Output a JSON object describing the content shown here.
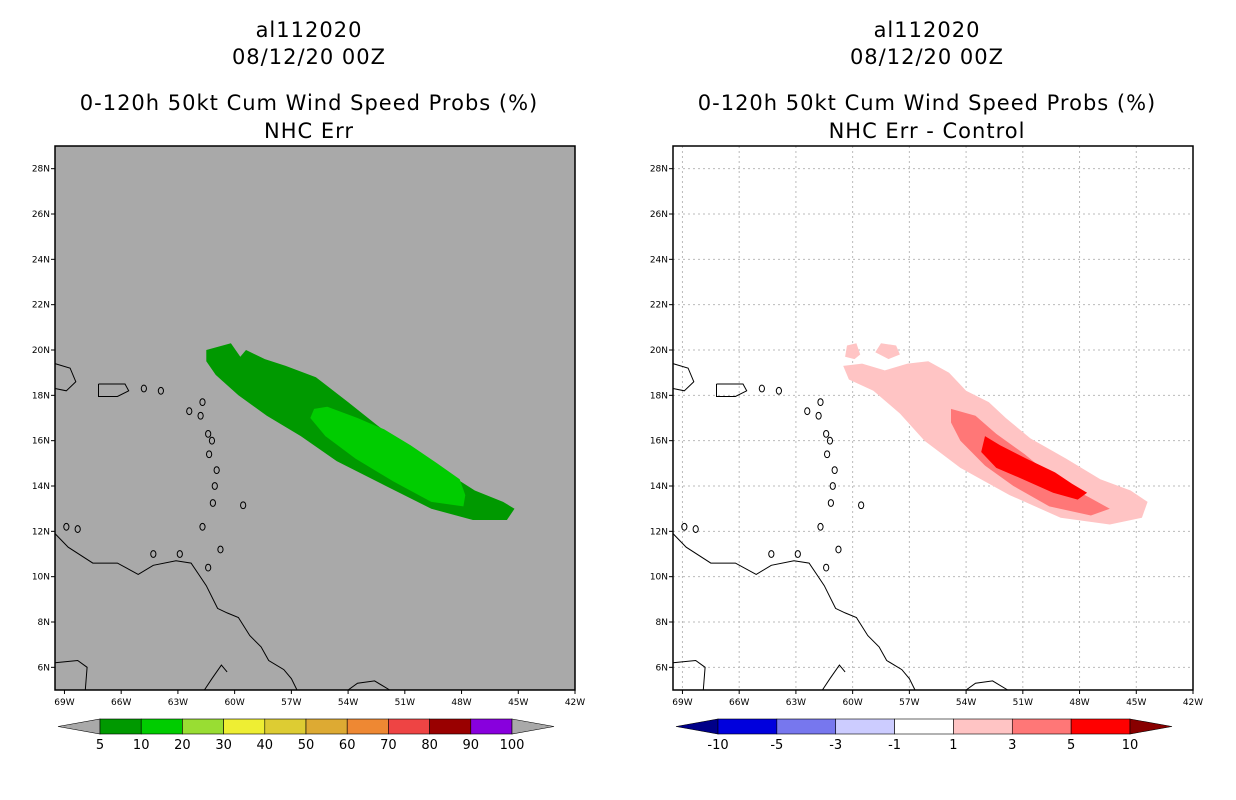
{
  "chart_data": [
    {
      "type": "heatmap",
      "title_lines": [
        "al112020",
        "08/12/20 00Z",
        "0-120h 50kt Cum Wind Speed Probs (%)",
        "NHC Err"
      ],
      "x_ticks": [
        "69W",
        "66W",
        "63W",
        "60W",
        "57W",
        "54W",
        "51W",
        "48W",
        "45W",
        "42W"
      ],
      "y_ticks": [
        "6N",
        "8N",
        "10N",
        "12N",
        "14N",
        "16N",
        "18N",
        "20N",
        "22N",
        "24N",
        "26N",
        "28N"
      ],
      "xlim_deg_w": [
        69.5,
        42
      ],
      "ylim_deg_n": [
        5,
        29
      ],
      "grid": false,
      "background_color": "#a9a9a9",
      "colorbar": {
        "labels": [
          "5",
          "10",
          "20",
          "30",
          "40",
          "50",
          "60",
          "70",
          "80",
          "90",
          "100"
        ],
        "colors": [
          "#009900",
          "#00cc00",
          "#99dd33",
          "#eeee33",
          "#ddcc33",
          "#ddaa33",
          "#ee8833",
          "#ee4444",
          "#990000",
          "#8800dd"
        ],
        "under_color": "#a9a9a9",
        "over_color": "#a9a9a9"
      },
      "contours": [
        {
          "level": 5,
          "color": "#009900",
          "polygon": [
            [
              61.5,
              20
            ],
            [
              60.2,
              20.3
            ],
            [
              59.7,
              19.7
            ],
            [
              59.4,
              20
            ],
            [
              58.4,
              19.6
            ],
            [
              57.3,
              19.3
            ],
            [
              55.7,
              18.8
            ],
            [
              54,
              17.7
            ],
            [
              52.5,
              16.7
            ],
            [
              50.9,
              15.7
            ],
            [
              48.8,
              14.6
            ],
            [
              47.3,
              13.8
            ],
            [
              45.8,
              13.3
            ],
            [
              45.2,
              13
            ],
            [
              45.6,
              12.5
            ],
            [
              47.4,
              12.5
            ],
            [
              49.6,
              13
            ],
            [
              52,
              14
            ],
            [
              54.6,
              15.1
            ],
            [
              56.5,
              16.2
            ],
            [
              58.3,
              17.1
            ],
            [
              59.8,
              18
            ],
            [
              61,
              18.9
            ],
            [
              61.5,
              19.5
            ]
          ]
        },
        {
          "level": 10,
          "color": "#00cc00",
          "polygon": [
            [
              55.1,
              17.5
            ],
            [
              53.5,
              17
            ],
            [
              52.1,
              16.5
            ],
            [
              50.7,
              15.8
            ],
            [
              49.3,
              15
            ],
            [
              48.1,
              14.3
            ],
            [
              47.8,
              13.6
            ],
            [
              47.9,
              13.1
            ],
            [
              49.6,
              13.3
            ],
            [
              51.6,
              14.2
            ],
            [
              53.6,
              15.2
            ],
            [
              55.2,
              16.2
            ],
            [
              56,
              17
            ],
            [
              55.8,
              17.4
            ]
          ]
        }
      ]
    },
    {
      "type": "heatmap",
      "title_lines": [
        "al112020",
        "08/12/20 00Z",
        "0-120h 50kt Cum Wind Speed Probs (%)",
        "NHC Err - Control"
      ],
      "x_ticks": [
        "69W",
        "66W",
        "63W",
        "60W",
        "57W",
        "54W",
        "51W",
        "48W",
        "45W",
        "42W"
      ],
      "y_ticks": [
        "6N",
        "8N",
        "10N",
        "12N",
        "14N",
        "16N",
        "18N",
        "20N",
        "22N",
        "24N",
        "26N",
        "28N"
      ],
      "xlim_deg_w": [
        69.5,
        42
      ],
      "ylim_deg_n": [
        5,
        29
      ],
      "grid": true,
      "background_color": "#ffffff",
      "colorbar": {
        "labels": [
          "-10",
          "-5",
          "-3",
          "-1",
          "1",
          "3",
          "5",
          "10"
        ],
        "colors": [
          "#0000dd",
          "#7777ee",
          "#ccccff",
          "#ffffff",
          "#ffc4c4",
          "#ff7777",
          "#ff0000"
        ],
        "under_color": "#000088",
        "over_color": "#880000"
      },
      "contours": [
        {
          "level": 1,
          "color": "#ffc4c4",
          "polygon": [
            [
              60.5,
              19.3
            ],
            [
              59.5,
              19.4
            ],
            [
              58.3,
              19.1
            ],
            [
              57.1,
              19.4
            ],
            [
              56,
              19.5
            ],
            [
              54.9,
              19
            ],
            [
              54,
              18.2
            ],
            [
              52.8,
              17.7
            ],
            [
              51.9,
              17
            ],
            [
              50.6,
              16.1
            ],
            [
              48.7,
              15.2
            ],
            [
              46.9,
              14.3
            ],
            [
              45.3,
              13.8
            ],
            [
              44.4,
              13.3
            ],
            [
              44.7,
              12.6
            ],
            [
              46.4,
              12.3
            ],
            [
              49,
              12.6
            ],
            [
              51.7,
              13.6
            ],
            [
              54.3,
              14.8
            ],
            [
              56.2,
              16
            ],
            [
              57.5,
              17.2
            ],
            [
              58.9,
              18.2
            ],
            [
              60.2,
              18.7
            ]
          ]
        },
        {
          "level": 1,
          "color": "#ffc4c4",
          "polygon": [
            [
              60.3,
              20.2
            ],
            [
              59.8,
              20.3
            ],
            [
              59.6,
              19.8
            ],
            [
              59.9,
              19.6
            ],
            [
              60.4,
              19.7
            ]
          ]
        },
        {
          "level": 1,
          "color": "#ffc4c4",
          "polygon": [
            [
              58.5,
              20.3
            ],
            [
              57.7,
              20.2
            ],
            [
              57.5,
              19.8
            ],
            [
              58.1,
              19.6
            ],
            [
              58.8,
              19.9
            ]
          ]
        },
        {
          "level": 3,
          "color": "#ff7777",
          "polygon": [
            [
              54.8,
              17.4
            ],
            [
              53.5,
              17.1
            ],
            [
              52.4,
              16.3
            ],
            [
              50.9,
              15.4
            ],
            [
              49.3,
              14.3
            ],
            [
              47.5,
              13.5
            ],
            [
              46.4,
              13
            ],
            [
              47.4,
              12.7
            ],
            [
              49.6,
              13.1
            ],
            [
              51.5,
              14
            ],
            [
              53,
              14.9
            ],
            [
              54.3,
              16
            ],
            [
              54.8,
              16.8
            ]
          ]
        },
        {
          "level": 5,
          "color": "#ff0000",
          "polygon": [
            [
              53,
              16.2
            ],
            [
              52.2,
              15.8
            ],
            [
              50.8,
              15.2
            ],
            [
              49.3,
              14.6
            ],
            [
              48.4,
              14.1
            ],
            [
              47.6,
              13.7
            ],
            [
              48.1,
              13.4
            ],
            [
              49.4,
              13.7
            ],
            [
              51,
              14.3
            ],
            [
              52.4,
              14.8
            ],
            [
              53.2,
              15.5
            ]
          ]
        }
      ]
    }
  ]
}
